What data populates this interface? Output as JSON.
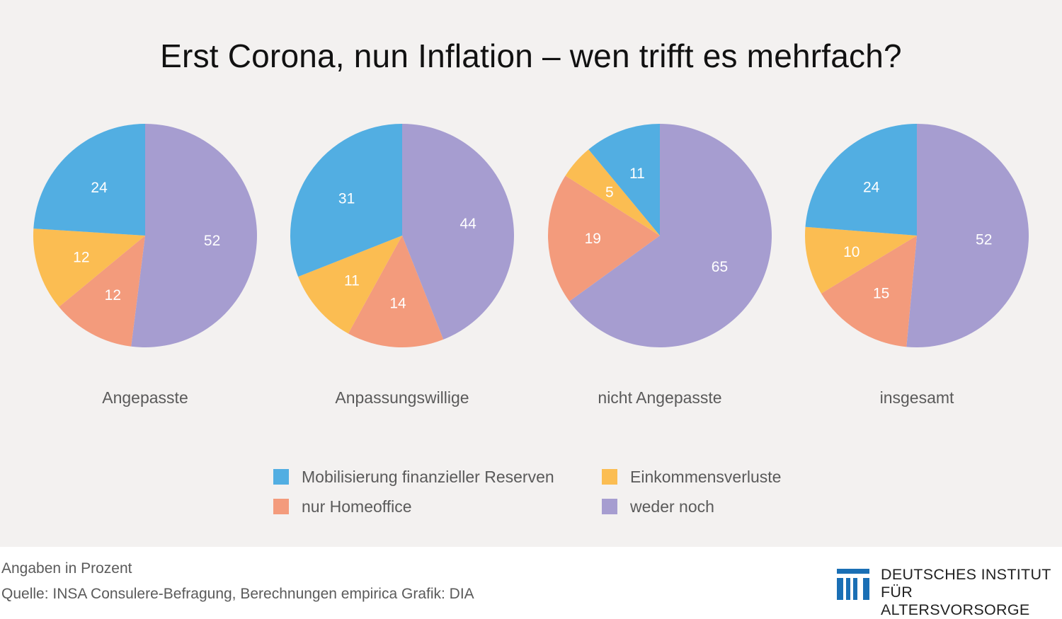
{
  "title": "Erst Corona, nun Inflation – wen trifft es mehrfach?",
  "chart_data": {
    "type": "pie",
    "unit_note": "Angaben in Prozent",
    "series_order": [
      "Mobilisierung finanzieller Reserven",
      "Einkommensverluste",
      "nur Homeoffice",
      "weder noch"
    ],
    "pies": [
      {
        "label": "Angepasste",
        "values": {
          "weder noch": 52,
          "nur Homeoffice": 12,
          "Einkommensverluste": 12,
          "Mobilisierung finanzieller Reserven": 24
        }
      },
      {
        "label": "Anpassungswillige",
        "values": {
          "weder noch": 44,
          "nur Homeoffice": 14,
          "Einkommensverluste": 11,
          "Mobilisierung finanzieller Reserven": 31
        }
      },
      {
        "label": "nicht Angepasste",
        "values": {
          "weder noch": 65,
          "nur Homeoffice": 19,
          "Einkommensverluste": 5,
          "Mobilisierung finanzieller Reserven": 11
        }
      },
      {
        "label": "insgesamt",
        "values": {
          "weder noch": 52,
          "nur Homeoffice": 15,
          "Einkommensverluste": 10,
          "Mobilisierung finanzieller Reserven": 24
        }
      }
    ],
    "colors": {
      "Mobilisierung finanzieller Reserven": "#52aee2",
      "Einkommensverluste": "#fbbd52",
      "nur Homeoffice": "#f39b7c",
      "weder noch": "#a69dd0"
    },
    "legend": [
      {
        "label": "Mobilisierung finanzieller Reserven",
        "color": "#52aee2"
      },
      {
        "label": "Einkommensverluste",
        "color": "#fbbd52"
      },
      {
        "label": "nur Homeoffice",
        "color": "#f39b7c"
      },
      {
        "label": "weder noch",
        "color": "#a69dd0"
      }
    ]
  },
  "footer": {
    "note": "Angaben in Prozent",
    "source": "Quelle: INSA Consulere-Befragung, Berechnungen empirica Grafik: DIA"
  },
  "logo": {
    "line1": "DEUTSCHES INSTITUT",
    "line2": "FÜR ALTERSVORSORGE",
    "color": "#1a6fb5"
  }
}
